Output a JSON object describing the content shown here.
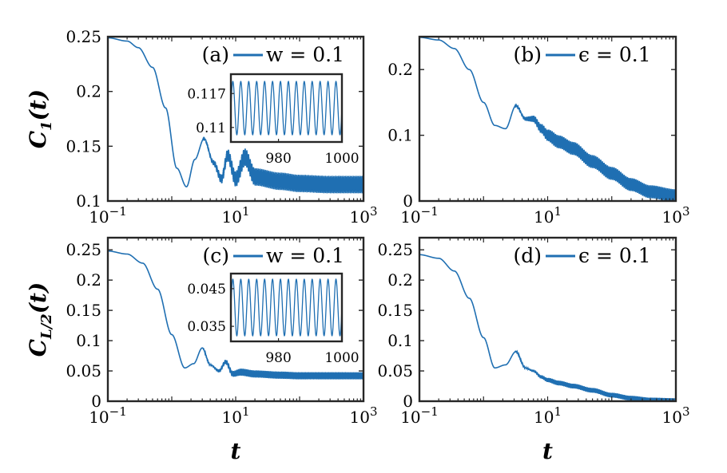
{
  "chart_data": [
    {
      "id": "a",
      "type": "line",
      "xscale": "log",
      "xlim": [
        0.1,
        1000
      ],
      "ylim": [
        0.1,
        0.25
      ],
      "yticks": [
        0.1,
        0.15,
        0.2,
        0.25
      ],
      "ytick_labels": [
        "0.1",
        "0.15",
        "0.2",
        "0.25"
      ],
      "xticks": [
        0.1,
        10,
        1000
      ],
      "xtick_labels": [
        {
          "base": "10",
          "exp": "−1"
        },
        {
          "base": "10",
          "exp": "1"
        },
        {
          "base": "10",
          "exp": "3"
        }
      ],
      "ylabel": {
        "main": "C",
        "sub": "1",
        "tail": "(t)"
      },
      "xlabel": "",
      "panel_label": "(a)",
      "legend": "w = 0.1",
      "legend_position": "top-right",
      "color": "#1f6fb2",
      "series": [
        {
          "name": "w = 0.1",
          "x": [
            0.1,
            0.2,
            0.3,
            0.5,
            0.8,
            1.2,
            1.7,
            2.3,
            3.2,
            4.5,
            6,
            7.5,
            10,
            14,
            20,
            50,
            100,
            300,
            1000
          ],
          "y": [
            0.249,
            0.246,
            0.24,
            0.222,
            0.185,
            0.13,
            0.113,
            0.138,
            0.157,
            0.135,
            0.12,
            0.142,
            0.12,
            0.14,
            0.122,
            0.118,
            0.116,
            0.115,
            0.115
          ],
          "osc_amp_late": 0.008
        }
      ],
      "inset": {
        "xlim": [
          965,
          1000
        ],
        "ylim": [
          0.107,
          0.121
        ],
        "yticks": [
          0.11,
          0.117
        ],
        "ytick_labels": [
          "0.11",
          "0.117"
        ],
        "xticks": [
          980,
          1000
        ],
        "xtick_labels": [
          "980",
          "1000"
        ],
        "center": 0.114,
        "amplitude": 0.0055,
        "cycles": 14
      }
    },
    {
      "id": "b",
      "type": "line",
      "xscale": "log",
      "xlim": [
        0.1,
        1000
      ],
      "ylim": [
        0,
        0.25
      ],
      "yticks": [
        0,
        0.1,
        0.2
      ],
      "ytick_labels": [
        "0",
        "0.1",
        "0.2"
      ],
      "xticks": [
        0.1,
        10,
        1000
      ],
      "xtick_labels": [
        {
          "base": "10",
          "exp": "−1"
        },
        {
          "base": "10",
          "exp": "1"
        },
        {
          "base": "10",
          "exp": "3"
        }
      ],
      "panel_label": "(b)",
      "legend": "ϵ = 0.1",
      "legend_position": "top-right",
      "color": "#1f6fb2",
      "series": [
        {
          "name": "ϵ = 0.1",
          "x": [
            0.1,
            0.2,
            0.35,
            0.6,
            1,
            1.5,
            2.2,
            3.2,
            4.5,
            6,
            8,
            10,
            15,
            25,
            50,
            100,
            200,
            400,
            1000
          ],
          "y": [
            0.249,
            0.245,
            0.232,
            0.2,
            0.15,
            0.115,
            0.11,
            0.145,
            0.125,
            0.125,
            0.11,
            0.1,
            0.09,
            0.08,
            0.06,
            0.042,
            0.025,
            0.014,
            0.008
          ],
          "osc_amp_late": 0.01
        }
      ]
    },
    {
      "id": "c",
      "type": "line",
      "xscale": "log",
      "xlim": [
        0.1,
        1000
      ],
      "ylim": [
        0,
        0.27
      ],
      "yticks": [
        0,
        0.05,
        0.1,
        0.15,
        0.2,
        0.25
      ],
      "ytick_labels": [
        "0",
        "0.05",
        "0.1",
        "0.15",
        "0.2",
        "0.25"
      ],
      "xticks": [
        0.1,
        10,
        1000
      ],
      "xtick_labels": [
        {
          "base": "10",
          "exp": "−1"
        },
        {
          "base": "10",
          "exp": "1"
        },
        {
          "base": "10",
          "exp": "3"
        }
      ],
      "ylabel": {
        "main": "C",
        "sub": "L/2",
        "tail": "(t)"
      },
      "xlabel": "t",
      "panel_label": "(c)",
      "legend": "w = 0.1",
      "legend_position": "top-right",
      "color": "#1f6fb2",
      "series": [
        {
          "name": "w = 0.1",
          "x": [
            0.1,
            0.2,
            0.35,
            0.6,
            1,
            1.6,
            2.2,
            3,
            4,
            5.5,
            7,
            9,
            12,
            20,
            50,
            100,
            300,
            1000
          ],
          "y": [
            0.248,
            0.243,
            0.228,
            0.185,
            0.11,
            0.055,
            0.062,
            0.088,
            0.06,
            0.05,
            0.065,
            0.045,
            0.048,
            0.045,
            0.043,
            0.042,
            0.042,
            0.042
          ],
          "osc_amp_late": 0.006
        }
      ],
      "inset": {
        "xlim": [
          965,
          1000
        ],
        "ylim": [
          0.031,
          0.049
        ],
        "yticks": [
          0.035,
          0.045
        ],
        "ytick_labels": [
          "0.035",
          "0.045"
        ],
        "xticks": [
          980,
          1000
        ],
        "xtick_labels": [
          "980",
          "1000"
        ],
        "center": 0.04,
        "amplitude": 0.0075,
        "cycles": 14
      }
    },
    {
      "id": "d",
      "type": "line",
      "xscale": "log",
      "xlim": [
        0.1,
        1000
      ],
      "ylim": [
        0,
        0.27
      ],
      "yticks": [
        0,
        0.05,
        0.1,
        0.15,
        0.2,
        0.25
      ],
      "ytick_labels": [
        "0",
        "0.05",
        "0.1",
        "0.15",
        "0.2",
        "0.25"
      ],
      "xticks": [
        0.1,
        10,
        1000
      ],
      "xtick_labels": [
        {
          "base": "10",
          "exp": "−1"
        },
        {
          "base": "10",
          "exp": "1"
        },
        {
          "base": "10",
          "exp": "3"
        }
      ],
      "xlabel": "t",
      "panel_label": "(d)",
      "legend": "ϵ = 0.1",
      "legend_position": "top-right",
      "color": "#1f6fb2",
      "series": [
        {
          "name": "ϵ = 0.1",
          "x": [
            0.1,
            0.2,
            0.35,
            0.6,
            1,
            1.5,
            2.2,
            3.2,
            4.5,
            6,
            8,
            10,
            15,
            25,
            50,
            100,
            200,
            400,
            1000
          ],
          "y": [
            0.242,
            0.236,
            0.215,
            0.17,
            0.105,
            0.055,
            0.06,
            0.082,
            0.055,
            0.05,
            0.04,
            0.035,
            0.03,
            0.025,
            0.018,
            0.01,
            0.005,
            0.002,
            0.001
          ],
          "osc_amp_late": 0.004
        }
      ]
    }
  ]
}
